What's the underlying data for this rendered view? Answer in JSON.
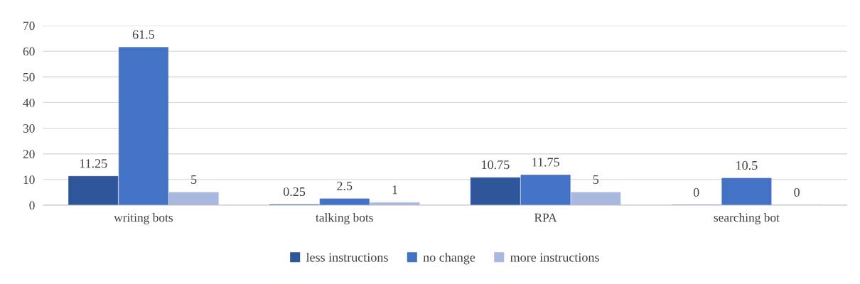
{
  "chart_data": {
    "type": "bar",
    "categories": [
      "writing bots",
      "talking bots",
      "RPA",
      "searching bot"
    ],
    "series": [
      {
        "name": "less instructions",
        "color": "#2f559a",
        "values": [
          11.25,
          0.25,
          10.75,
          0
        ]
      },
      {
        "name": "no change",
        "color": "#4472c4",
        "values": [
          61.5,
          2.5,
          11.75,
          10.5
        ]
      },
      {
        "name": "more instructions",
        "color": "#a9b8de",
        "values": [
          5,
          1,
          5,
          0
        ]
      }
    ],
    "ylim": [
      0,
      70
    ],
    "yticks": [
      0,
      10,
      20,
      30,
      40,
      50,
      60,
      70
    ],
    "grid": "y",
    "legend": "bottom",
    "data_labels": true
  }
}
